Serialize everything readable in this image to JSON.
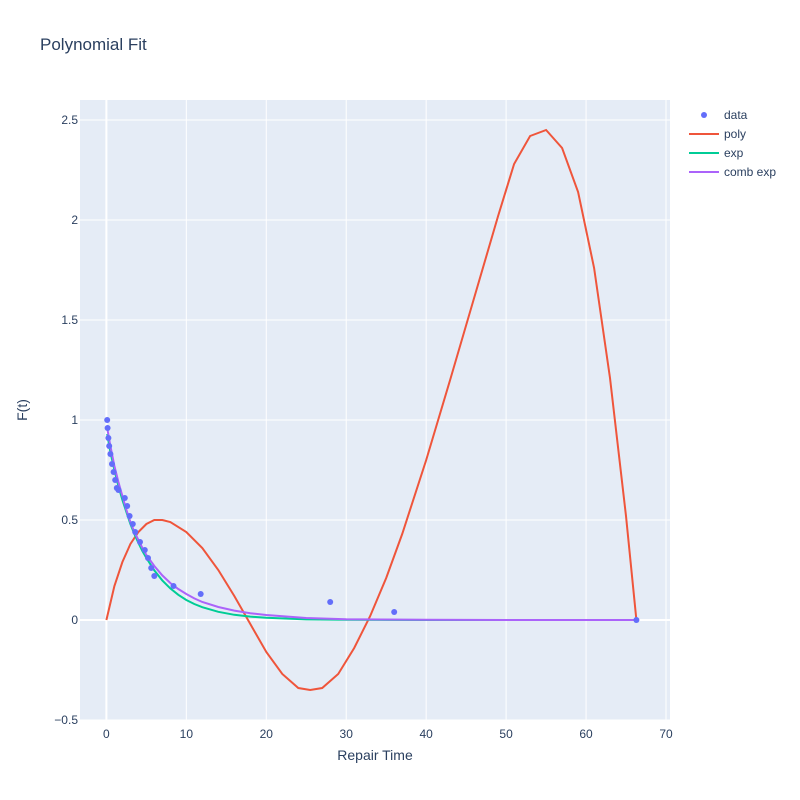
{
  "chart_data": {
    "type": "scatter",
    "title": "Polynomial Fit",
    "xlabel": "Repair Time",
    "ylabel": "F(t)",
    "xlim": [
      -3.3,
      70.5
    ],
    "ylim": [
      -0.5,
      2.6
    ],
    "xticks": [
      0,
      10,
      20,
      30,
      40,
      50,
      60,
      70
    ],
    "yticks": [
      -0.5,
      0,
      0.5,
      1,
      1.5,
      2,
      2.5
    ],
    "xtick_labels": [
      "0",
      "10",
      "20",
      "30",
      "40",
      "50",
      "60",
      "70"
    ],
    "ytick_labels": [
      "−0.5",
      "0",
      "0.5",
      "1",
      "1.5",
      "2",
      "2.5"
    ],
    "grid": true,
    "legend_position": "top-right",
    "series": [
      {
        "name": "data",
        "mode": "markers",
        "color": "#636efa",
        "x": [
          0.1,
          0.15,
          0.25,
          0.35,
          0.5,
          0.7,
          0.9,
          1.1,
          1.3,
          1.5,
          2.3,
          2.6,
          2.9,
          3.3,
          3.6,
          4.2,
          4.8,
          5.2,
          5.6,
          6.0,
          8.4,
          11.8,
          28.0,
          36.0,
          66.3
        ],
        "y": [
          1.0,
          0.96,
          0.91,
          0.87,
          0.83,
          0.78,
          0.74,
          0.7,
          0.66,
          0.65,
          0.61,
          0.57,
          0.52,
          0.48,
          0.44,
          0.39,
          0.35,
          0.31,
          0.26,
          0.22,
          0.17,
          0.13,
          0.09,
          0.04,
          0.0
        ]
      },
      {
        "name": "poly",
        "mode": "lines",
        "color": "#ef553b",
        "x": [
          0,
          1,
          2,
          3,
          4,
          5,
          6,
          7,
          8,
          10,
          12,
          14,
          16,
          18,
          20,
          22,
          24,
          25.5,
          27,
          29,
          31,
          33,
          35,
          37,
          40,
          43,
          46,
          49,
          51,
          53,
          55,
          57,
          59,
          61,
          63,
          65,
          66.3
        ],
        "y": [
          0,
          0.17,
          0.29,
          0.38,
          0.44,
          0.48,
          0.5,
          0.5,
          0.49,
          0.44,
          0.36,
          0.25,
          0.12,
          -0.02,
          -0.16,
          -0.27,
          -0.34,
          -0.35,
          -0.34,
          -0.27,
          -0.14,
          0.02,
          0.21,
          0.43,
          0.8,
          1.2,
          1.61,
          2.02,
          2.28,
          2.42,
          2.45,
          2.36,
          2.14,
          1.76,
          1.21,
          0.52,
          0.0
        ]
      },
      {
        "name": "exp",
        "mode": "lines",
        "color": "#00cc96",
        "x": [
          0.1,
          0.5,
          1,
          1.5,
          2,
          2.5,
          3,
          3.5,
          4,
          4.5,
          5,
          6,
          7,
          8,
          9,
          10,
          11,
          12,
          14,
          16,
          18,
          20,
          25,
          30,
          40,
          50,
          60,
          66.3
        ],
        "y": [
          0.93,
          0.84,
          0.75,
          0.67,
          0.6,
          0.54,
          0.48,
          0.43,
          0.385,
          0.345,
          0.31,
          0.248,
          0.198,
          0.158,
          0.126,
          0.1,
          0.08,
          0.064,
          0.041,
          0.026,
          0.017,
          0.011,
          0.003,
          0.001,
          0.0,
          0.0,
          0.0,
          0.0
        ]
      },
      {
        "name": "comb exp",
        "mode": "lines",
        "color": "#ab63fa",
        "x": [
          0.1,
          0.5,
          1,
          1.5,
          2,
          2.5,
          3,
          3.5,
          4,
          4.5,
          5,
          6,
          7,
          8,
          9,
          10,
          11,
          12,
          14,
          16,
          18,
          20,
          25,
          30,
          40,
          50,
          60,
          66.3
        ],
        "y": [
          0.96,
          0.87,
          0.77,
          0.69,
          0.62,
          0.55,
          0.49,
          0.44,
          0.4,
          0.36,
          0.325,
          0.27,
          0.223,
          0.185,
          0.155,
          0.13,
          0.108,
          0.09,
          0.065,
          0.047,
          0.034,
          0.025,
          0.01,
          0.004,
          0.001,
          0.0,
          0.0,
          0.0
        ]
      }
    ]
  }
}
